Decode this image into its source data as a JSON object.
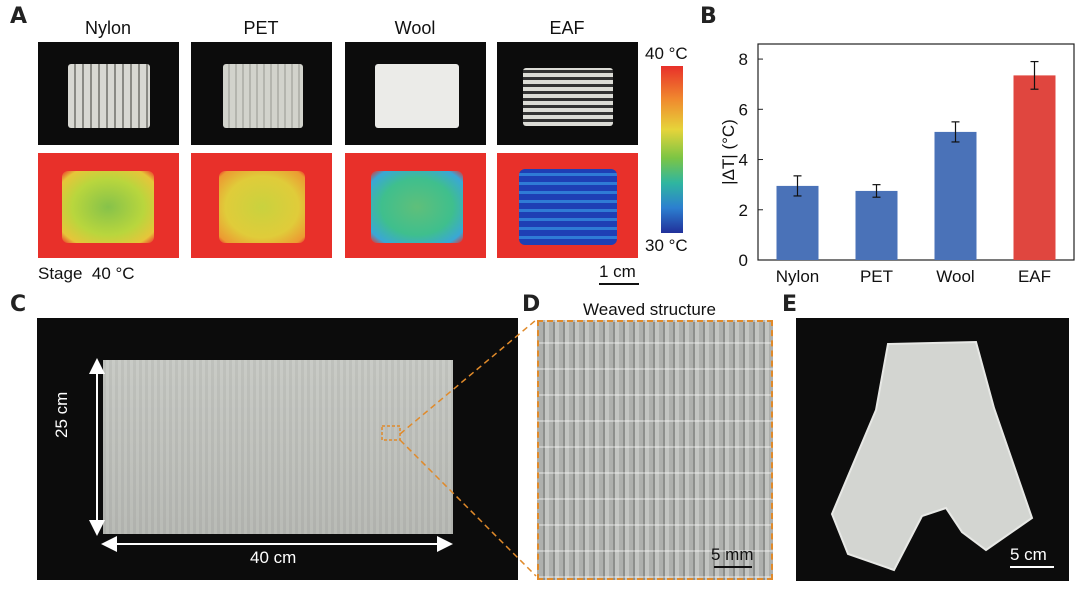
{
  "panel_labels": {
    "a": "A",
    "b": "B",
    "c": "C",
    "d": "D",
    "e": "E"
  },
  "panel_a": {
    "columns": [
      "Nylon",
      "PET",
      "Wool",
      "EAF"
    ],
    "colorbar_max": "40 °C",
    "colorbar_min": "30 °C",
    "stage_label": "Stage  40 °C",
    "scale_label": "1 cm"
  },
  "chart_data": {
    "type": "bar",
    "categories": [
      "Nylon",
      "PET",
      "Wool",
      "EAF"
    ],
    "values": [
      2.95,
      2.75,
      5.1,
      7.35
    ],
    "errors": [
      0.4,
      0.25,
      0.4,
      0.55
    ],
    "colors": [
      "#4a72b8",
      "#4a72b8",
      "#4a72b8",
      "#e0463f"
    ],
    "ylabel": "|ΔT| (°C)",
    "ylim": [
      0,
      8.6
    ],
    "yticks": [
      0,
      2,
      4,
      6,
      8
    ],
    "xlabel": ""
  },
  "panel_c": {
    "height_label": "25 cm",
    "width_label": "40 cm"
  },
  "panel_d": {
    "title": "Weaved structure",
    "scale_label": "5 mm"
  },
  "panel_e": {
    "scale_label": "5 cm"
  },
  "colors": {
    "thermal_bg": "#e8302a",
    "photo_bg": "#0c0c0c",
    "guide": "#e08a2a",
    "bar_blue": "#4a72b8",
    "bar_red": "#e0463f"
  }
}
